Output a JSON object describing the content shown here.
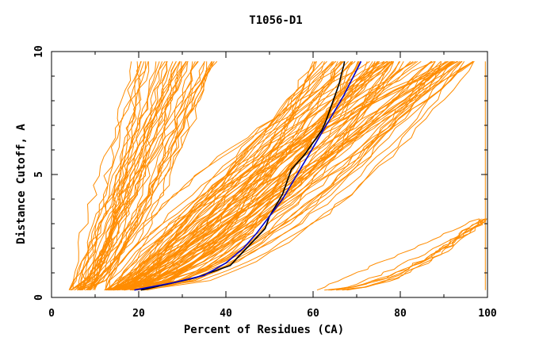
{
  "chart_data": {
    "type": "line",
    "title": "T1056-D1",
    "xlabel": "Percent of Residues (CA)",
    "ylabel": "Distance Cutoff, A",
    "xlim": [
      0,
      100
    ],
    "ylim": [
      0,
      10
    ],
    "x_ticks": [
      "0",
      "20",
      "40",
      "60",
      "80",
      "100"
    ],
    "y_ticks": [
      "0",
      "5",
      "10"
    ],
    "grid": false,
    "colors": {
      "models": "#ff8c00",
      "highlight_black": "#000000",
      "highlight_blue": "#0000cc",
      "axes": "#000000"
    },
    "series": [
      {
        "role": "model-bundle-left",
        "color": "#ff8c00",
        "count": 40,
        "x_start_range": [
          4,
          10
        ],
        "x_end_range": [
          18,
          38
        ],
        "y_range": [
          0.3,
          9.6
        ]
      },
      {
        "role": "model-bundle-main",
        "color": "#ff8c00",
        "count": 90,
        "x_start_range": [
          12,
          22
        ],
        "x_end_range": [
          60,
          98
        ],
        "y_range": [
          0.3,
          9.6
        ]
      },
      {
        "role": "model-bundle-right",
        "color": "#ff8c00",
        "count": 8,
        "x_start_range": [
          60,
          68
        ],
        "x_end_range": [
          98,
          100
        ],
        "y_range": [
          0.3,
          3.2
        ]
      },
      {
        "role": "model-vertical",
        "color": "#ff8c00",
        "x": [
          99.5,
          99.5
        ],
        "y": [
          0.3,
          9.6
        ]
      },
      {
        "role": "highlight-black",
        "color": "#000000",
        "x": [
          20.5,
          33,
          41,
          49,
          50,
          53,
          54,
          55,
          58,
          60,
          62,
          63,
          64,
          65,
          66,
          66.5,
          67,
          67.2
        ],
        "y": [
          0.3,
          0.8,
          1.3,
          2.8,
          3.3,
          4.2,
          4.7,
          5.2,
          5.8,
          6.3,
          6.8,
          7.2,
          7.7,
          8.2,
          8.7,
          9.1,
          9.4,
          9.6
        ]
      },
      {
        "role": "highlight-blue",
        "color": "#0000cc",
        "x": [
          19,
          28,
          35,
          40,
          44,
          47,
          50,
          53,
          55,
          57,
          59,
          61,
          63,
          65,
          67,
          69,
          71
        ],
        "y": [
          0.3,
          0.6,
          0.9,
          1.4,
          2.0,
          2.6,
          3.3,
          4.0,
          4.6,
          5.2,
          5.8,
          6.4,
          7.0,
          7.6,
          8.2,
          8.9,
          9.6
        ]
      }
    ]
  }
}
